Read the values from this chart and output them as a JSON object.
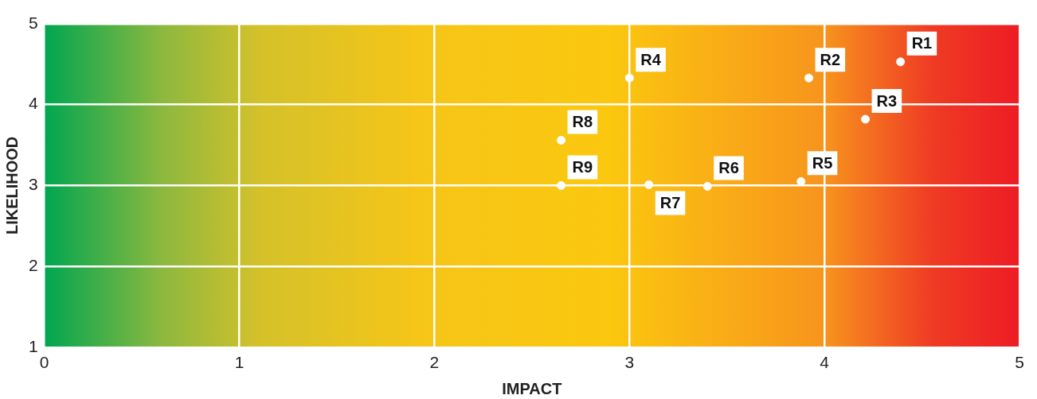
{
  "chart_data": {
    "type": "scatter",
    "xlabel": "IMPACT",
    "ylabel": "LIKELIHOOD",
    "xlim": [
      0,
      5
    ],
    "xticks": [
      0,
      1,
      2,
      3,
      4,
      5
    ],
    "ylim": [
      1,
      5
    ],
    "yticks": [
      1,
      2,
      3,
      4,
      5
    ],
    "grid": true,
    "legend": false,
    "marker": "circle",
    "series": [
      {
        "name": "R1",
        "color": "#ffffff",
        "x": [
          4.39
        ],
        "values": [
          4.53
        ]
      },
      {
        "name": "R2",
        "color": "#ffffff",
        "x": [
          3.92
        ],
        "values": [
          4.33
        ]
      },
      {
        "name": "R3",
        "color": "#ffffff",
        "x": [
          4.21
        ],
        "values": [
          3.82
        ]
      },
      {
        "name": "R4",
        "color": "#ffffff",
        "x": [
          3.0
        ],
        "values": [
          4.33
        ]
      },
      {
        "name": "R5",
        "color": "#ffffff",
        "x": [
          3.88
        ],
        "values": [
          3.05
        ]
      },
      {
        "name": "R6",
        "color": "#ffffff",
        "x": [
          3.4
        ],
        "values": [
          2.99
        ]
      },
      {
        "name": "R7",
        "color": "#ffffff",
        "x": [
          3.1
        ],
        "values": [
          3.01
        ]
      },
      {
        "name": "R8",
        "color": "#ffffff",
        "x": [
          2.65
        ],
        "values": [
          3.56
        ]
      },
      {
        "name": "R9",
        "color": "#ffffff",
        "x": [
          2.65
        ],
        "values": [
          3.0
        ]
      }
    ]
  }
}
